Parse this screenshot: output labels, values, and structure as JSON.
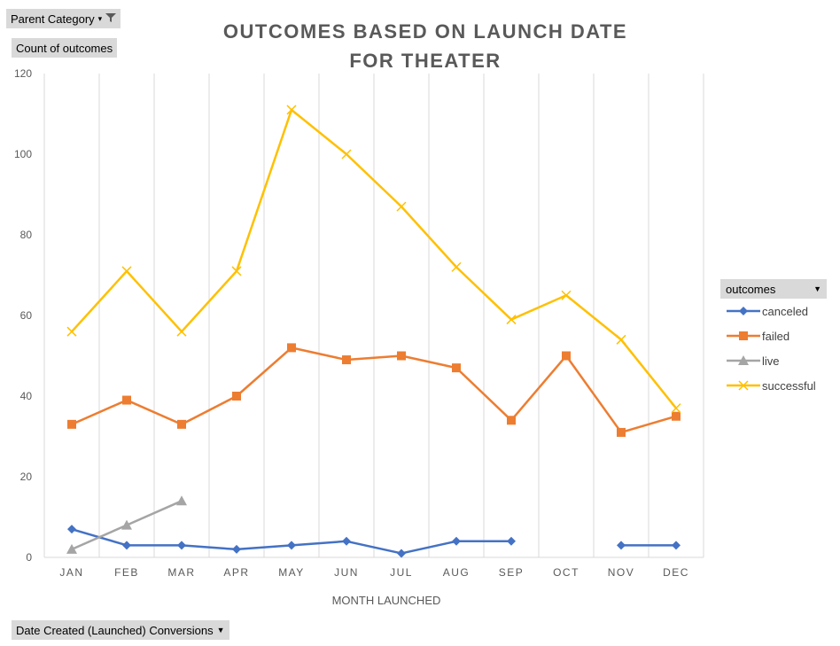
{
  "filters": {
    "parent_category": "Parent Category",
    "count_field": "Count of outcomes",
    "date_field": "Date Created (Launched) Conversions"
  },
  "legend": {
    "title": "outcomes"
  },
  "colors": {
    "canceled": "#4472c4",
    "failed": "#ed7d31",
    "live": "#a5a5a5",
    "successful": "#ffc000"
  },
  "chart_data": {
    "type": "line",
    "title_line_1": "OUTCOMES BASED ON LAUNCH DATE",
    "title_line_2": "FOR THEATER",
    "xlabel": "MONTH LAUNCHED",
    "ylabel": "",
    "ylim": [
      0,
      120
    ],
    "yticks": [
      0,
      20,
      40,
      60,
      80,
      100,
      120
    ],
    "grid": "vertical",
    "legend_position": "right",
    "categories": [
      "JAN",
      "FEB",
      "MAR",
      "APR",
      "MAY",
      "JUN",
      "JUL",
      "AUG",
      "SEP",
      "OCT",
      "NOV",
      "DEC"
    ],
    "series": [
      {
        "name": "canceled",
        "marker": "diamond",
        "values": [
          7,
          3,
          3,
          2,
          3,
          4,
          1,
          4,
          4,
          null,
          3,
          3
        ]
      },
      {
        "name": "failed",
        "marker": "square",
        "values": [
          33,
          39,
          33,
          40,
          52,
          49,
          50,
          47,
          34,
          50,
          31,
          35
        ]
      },
      {
        "name": "live",
        "marker": "triangle",
        "values": [
          2,
          8,
          14,
          null,
          null,
          null,
          null,
          null,
          null,
          null,
          null,
          null
        ]
      },
      {
        "name": "successful",
        "marker": "x",
        "values": [
          56,
          71,
          56,
          71,
          111,
          100,
          87,
          72,
          59,
          65,
          54,
          37
        ]
      }
    ]
  }
}
